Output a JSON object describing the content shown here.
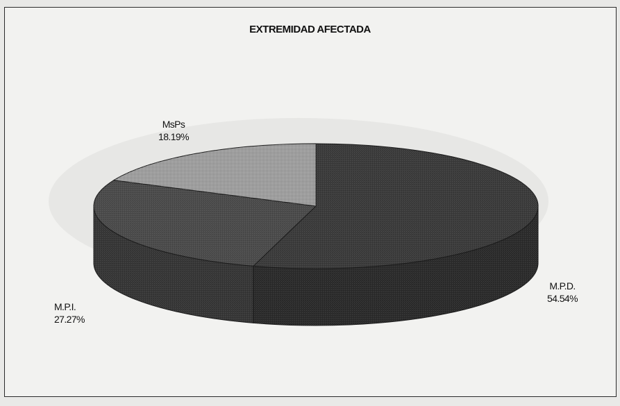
{
  "chart_data": {
    "type": "pie",
    "title": "EXTREMIDAD AFECTADA",
    "slices": [
      {
        "label": "M.P.D.",
        "value": 54.54,
        "value_label": "54.54%",
        "color": "#3a3a3a"
      },
      {
        "label": "M.P.I.",
        "value": 27.27,
        "value_label": "27.27%",
        "color": "#4a4a4a"
      },
      {
        "label": "MsPs",
        "value": 18.19,
        "value_label": "18.19%",
        "color": "#9c9c9c"
      }
    ],
    "style": "3d",
    "legend": "none"
  }
}
